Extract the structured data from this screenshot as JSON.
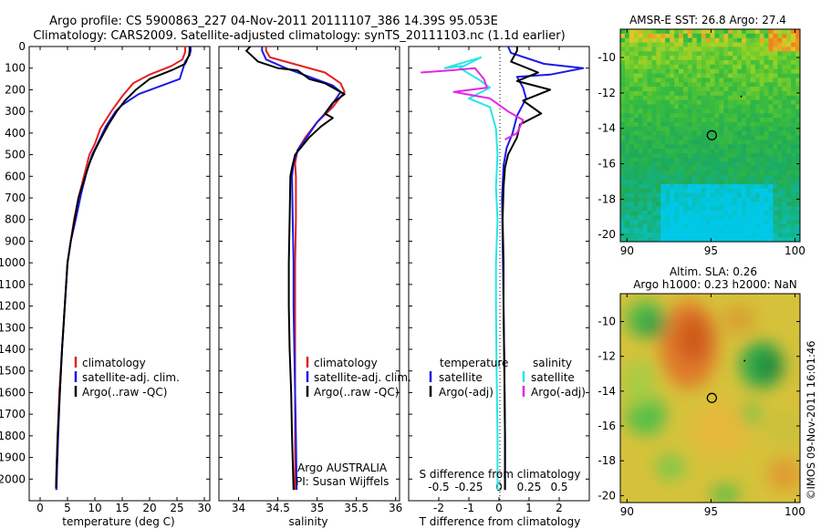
{
  "title": {
    "line1": "Argo profile: CS 5900863_227 04-Nov-2011 20111107_386 14.39S 95.053E",
    "line2": "Climatology: CARS2009. Satellite-adjusted climatology: synTS_20111103.nc (1.1d earlier)"
  },
  "side_label": "©IMOS 09-Nov-2011 16:01:46",
  "colors": {
    "climatology": "#e52020",
    "satellite": "#1a1ae6",
    "argo": "#000000",
    "satellite_s": "#27e6e6",
    "argo_s": "#e626e6"
  },
  "chart_data": [
    {
      "type": "line",
      "panel": "temperature",
      "xlabel": "temperature (deg C)",
      "ylabel": "",
      "xlim": [
        -2,
        31
      ],
      "ylim": [
        2100,
        0
      ],
      "x_ticks": [
        "0",
        "5",
        "10",
        "15",
        "20",
        "25",
        "30"
      ],
      "y_ticks": [
        "0",
        "100",
        "200",
        "300",
        "400",
        "500",
        "600",
        "700",
        "800",
        "900",
        "1000",
        "1100",
        "1200",
        "1300",
        "1400",
        "1500",
        "1600",
        "1700",
        "1800",
        "1900",
        "2000"
      ],
      "legend": [
        "climatology",
        "satellite-adj. clim.",
        "Argo(..raw -QC)"
      ],
      "series": [
        {
          "name": "climatology",
          "color": "climatology",
          "points": [
            [
              26.5,
              0
            ],
            [
              26.5,
              25
            ],
            [
              26,
              60
            ],
            [
              24,
              90
            ],
            [
              20,
              130
            ],
            [
              17,
              170
            ],
            [
              15,
              230
            ],
            [
              13,
              300
            ],
            [
              11,
              380
            ],
            [
              10,
              450
            ],
            [
              9,
              500
            ],
            [
              8,
              600
            ],
            [
              7,
              700
            ],
            [
              6.2,
              800
            ],
            [
              5.6,
              900
            ],
            [
              5,
              1000
            ],
            [
              4.5,
              1200
            ],
            [
              4,
              1400
            ],
            [
              3.5,
              1600
            ],
            [
              3.2,
              1800
            ],
            [
              3,
              1950
            ],
            [
              2.9,
              2050
            ]
          ]
        },
        {
          "name": "satellite-adj. clim.",
          "color": "satellite",
          "points": [
            [
              27.5,
              0
            ],
            [
              27.5,
              20
            ],
            [
              27.3,
              40
            ],
            [
              26.5,
              70
            ],
            [
              25.5,
              150
            ],
            [
              18,
              220
            ],
            [
              15,
              270
            ],
            [
              13.8,
              300
            ],
            [
              12,
              370
            ],
            [
              10.5,
              450
            ],
            [
              9.5,
              500
            ],
            [
              8.5,
              580
            ],
            [
              7.5,
              680
            ],
            [
              6.5,
              800
            ],
            [
              5.6,
              900
            ],
            [
              5,
              1000
            ],
            [
              4.5,
              1200
            ],
            [
              4,
              1400
            ],
            [
              3.6,
              1600
            ],
            [
              3.3,
              1800
            ],
            [
              3.1,
              1950
            ],
            [
              3,
              2050
            ]
          ]
        },
        {
          "name": "Argo(..raw -QC)",
          "color": "argo",
          "points": [
            [
              27.3,
              0
            ],
            [
              27.3,
              20
            ],
            [
              27.2,
              40
            ],
            [
              26.5,
              80
            ],
            [
              24,
              110
            ],
            [
              20,
              150
            ],
            [
              17.5,
              200
            ],
            [
              15.5,
              250
            ],
            [
              14,
              300
            ],
            [
              12.5,
              360
            ],
            [
              11,
              430
            ],
            [
              10,
              480
            ],
            [
              9,
              540
            ],
            [
              8,
              620
            ],
            [
              7,
              700
            ],
            [
              6.3,
              800
            ],
            [
              5.6,
              900
            ],
            [
              5,
              1000
            ],
            [
              4.5,
              1200
            ],
            [
              4,
              1400
            ],
            [
              3.6,
              1600
            ],
            [
              3.2,
              1800
            ],
            [
              3,
              1950
            ],
            [
              2.9,
              2040
            ]
          ]
        }
      ]
    },
    {
      "type": "line",
      "panel": "salinity",
      "xlabel": "salinity",
      "xlim": [
        33.75,
        36.05
      ],
      "ylim": [
        2100,
        0
      ],
      "x_ticks": [
        "34",
        "34.5",
        "35",
        "35.5",
        "36"
      ],
      "legend": [
        "climatology",
        "satellite-adj. clim.",
        "Argo(..raw -QC)"
      ],
      "annotation": [
        "Argo AUSTRALIA",
        "PI: Susan Wijffels"
      ],
      "series": [
        {
          "name": "climatology",
          "color": "climatology",
          "points": [
            [
              34.35,
              0
            ],
            [
              34.35,
              20
            ],
            [
              34.4,
              50
            ],
            [
              34.7,
              80
            ],
            [
              35.1,
              120
            ],
            [
              35.3,
              170
            ],
            [
              35.35,
              210
            ],
            [
              35.2,
              280
            ],
            [
              35,
              350
            ],
            [
              34.85,
              420
            ],
            [
              34.75,
              480
            ],
            [
              34.72,
              540
            ],
            [
              34.73,
              600
            ],
            [
              34.73,
              800
            ],
            [
              34.72,
              1000
            ],
            [
              34.72,
              1200
            ],
            [
              34.72,
              1400
            ],
            [
              34.72,
              1600
            ],
            [
              34.72,
              1800
            ],
            [
              34.72,
              2050
            ]
          ]
        },
        {
          "name": "satellite-adj. clim.",
          "color": "satellite",
          "points": [
            [
              34.3,
              0
            ],
            [
              34.3,
              20
            ],
            [
              34.35,
              60
            ],
            [
              34.6,
              100
            ],
            [
              34.9,
              140
            ],
            [
              35.2,
              180
            ],
            [
              35.3,
              210
            ],
            [
              35.15,
              290
            ],
            [
              35,
              350
            ],
            [
              34.85,
              430
            ],
            [
              34.75,
              480
            ],
            [
              34.7,
              540
            ],
            [
              34.68,
              600
            ],
            [
              34.69,
              800
            ],
            [
              34.7,
              1000
            ],
            [
              34.7,
              1200
            ],
            [
              34.71,
              1400
            ],
            [
              34.72,
              1600
            ],
            [
              34.73,
              1800
            ],
            [
              34.74,
              2050
            ]
          ]
        },
        {
          "name": "Argo(..raw -QC)",
          "color": "argo",
          "points": [
            [
              34.15,
              0
            ],
            [
              34.1,
              20
            ],
            [
              34.25,
              70
            ],
            [
              34.5,
              100
            ],
            [
              34.75,
              110
            ],
            [
              34.9,
              150
            ],
            [
              35.1,
              170
            ],
            [
              35.35,
              220
            ],
            [
              35.2,
              260
            ],
            [
              35.1,
              310
            ],
            [
              35.2,
              330
            ],
            [
              35.05,
              370
            ],
            [
              34.9,
              420
            ],
            [
              34.72,
              500
            ],
            [
              34.68,
              560
            ],
            [
              34.66,
              600
            ],
            [
              34.65,
              800
            ],
            [
              34.64,
              1000
            ],
            [
              34.64,
              1200
            ],
            [
              34.65,
              1400
            ],
            [
              34.67,
              1600
            ],
            [
              34.68,
              1800
            ],
            [
              34.7,
              2050
            ]
          ]
        }
      ]
    },
    {
      "type": "line",
      "panel": "difference",
      "xlabel": "T difference from climatology",
      "xlabel_top": "S difference from climatology",
      "xlim": [
        -3,
        3
      ],
      "ylim": [
        2100,
        0
      ],
      "x_ticks": [
        "-2",
        "-1",
        "0",
        "1",
        "2"
      ],
      "x_ticks_s": [
        "-0.5",
        "-0.25",
        "0",
        "0.25",
        "0.5"
      ],
      "legend_t_title": "temperature",
      "legend_s_title": "salinity",
      "legend_t": [
        "satellite",
        "Argo(-adj)"
      ],
      "legend_s": [
        "satellite",
        "Argo(-adj)"
      ],
      "series": [
        {
          "name": "satellite",
          "color": "satellite",
          "points": [
            [
              0.3,
              0
            ],
            [
              0.4,
              30
            ],
            [
              1.5,
              80
            ],
            [
              2.8,
              100
            ],
            [
              1.7,
              130
            ],
            [
              0.6,
              140
            ],
            [
              0.8,
              190
            ],
            [
              0.9,
              240
            ],
            [
              0.6,
              320
            ],
            [
              0.45,
              400
            ],
            [
              0.25,
              470
            ],
            [
              0.15,
              550
            ],
            [
              0.1,
              700
            ],
            [
              0.12,
              900
            ],
            [
              0.15,
              1200
            ],
            [
              0.18,
              1500
            ],
            [
              0.2,
              1800
            ],
            [
              0.2,
              2050
            ]
          ]
        },
        {
          "name": "Argo(-adj)",
          "color": "argo",
          "points": [
            [
              0.6,
              0
            ],
            [
              0.6,
              20
            ],
            [
              0.4,
              70
            ],
            [
              1.3,
              120
            ],
            [
              0.6,
              160
            ],
            [
              1.7,
              200
            ],
            [
              0.8,
              250
            ],
            [
              1.4,
              310
            ],
            [
              0.7,
              360
            ],
            [
              0.6,
              420
            ],
            [
              0.3,
              500
            ],
            [
              0.2,
              560
            ],
            [
              0.15,
              650
            ],
            [
              0.12,
              800
            ],
            [
              0.15,
              1000
            ],
            [
              0.15,
              1200
            ],
            [
              0.18,
              1500
            ],
            [
              0.2,
              1800
            ],
            [
              0.2,
              2050
            ]
          ]
        },
        {
          "name": "satellite",
          "color": "satellite_s",
          "points": [
            [
              -1.2,
              90
            ],
            [
              -1.8,
              100
            ],
            [
              -0.6,
              50
            ],
            [
              -1.3,
              100
            ],
            [
              -0.7,
              150
            ],
            [
              -0.3,
              190
            ],
            [
              -1,
              240
            ],
            [
              -0.3,
              280
            ],
            [
              -0.1,
              380
            ],
            [
              -0.05,
              500
            ],
            [
              -0.1,
              650
            ],
            [
              -0.05,
              800
            ],
            [
              -0.1,
              1000
            ],
            [
              -0.1,
              1200
            ],
            [
              -0.08,
              1500
            ],
            [
              -0.05,
              1800
            ],
            [
              -0.05,
              2050
            ]
          ]
        },
        {
          "name": "Argo(-adj)",
          "color": "argo_s",
          "points": [
            [
              -2.6,
              120
            ],
            [
              -1.6,
              110
            ],
            [
              -0.8,
              100
            ],
            [
              -0.5,
              150
            ],
            [
              -0.4,
              190
            ],
            [
              -1.5,
              210
            ],
            [
              -0.3,
              240
            ],
            [
              0.3,
              300
            ],
            [
              0.8,
              340
            ],
            [
              0.6,
              400
            ],
            [
              0.2,
              430
            ]
          ]
        }
      ]
    },
    {
      "type": "heatmap",
      "panel": "sst",
      "title": "AMSR-E SST: 26.8  Argo: 27.4",
      "xlim": [
        89.6,
        100.3
      ],
      "ylim": [
        -20.4,
        -8.4
      ],
      "x_ticks": [
        "90",
        "95",
        "100"
      ],
      "y_ticks": [
        "-10",
        "-12",
        "-14",
        "-16",
        "-18",
        "-20"
      ],
      "marker": [
        95.05,
        -14.39
      ],
      "dot": [
        96.8,
        -12.2
      ]
    },
    {
      "type": "heatmap",
      "panel": "sla",
      "title": "Altim. SLA: 0.26",
      "subtitle": "Argo h1000: 0.23 h2000: NaN",
      "xlim": [
        89.6,
        100.3
      ],
      "ylim": [
        -20.4,
        -8.4
      ],
      "x_ticks": [
        "90",
        "95",
        "100"
      ],
      "y_ticks": [
        "-10",
        "-12",
        "-14",
        "-16",
        "-18",
        "-20"
      ],
      "marker": [
        95.05,
        -14.39
      ],
      "dot": [
        97.0,
        -12.25
      ]
    }
  ]
}
